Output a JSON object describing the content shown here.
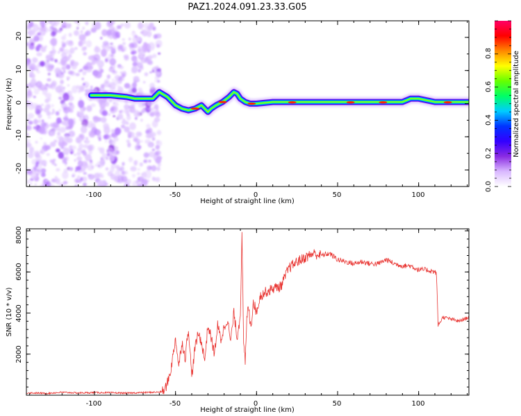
{
  "title": "PAZ1.2024.091.23.33.G05",
  "chart_data": [
    {
      "type": "heatmap",
      "xlabel": "Height of straight line (km)",
      "ylabel": "Frequency (Hz)",
      "xlim": [
        -142,
        131
      ],
      "ylim": [
        -25,
        25
      ],
      "x_ticks": [
        "-100",
        "-50",
        "0",
        "50",
        "100"
      ],
      "y_ticks": [
        "-20",
        "-10",
        "0",
        "10",
        "20"
      ],
      "colorbar": {
        "label": "Normalized spectral amplitude",
        "range": [
          0,
          1
        ],
        "ticks": [
          "0.0",
          "0.2",
          "0.4",
          "0.6",
          "0.8"
        ],
        "colormap": [
          "#ffffff",
          "#d9b8ff",
          "#8a2be2",
          "#3300ff",
          "#0033ff",
          "#00ccff",
          "#00ff66",
          "#66ff00",
          "#ffff00",
          "#ff8800",
          "#ff0000",
          "#ff0066"
        ]
      },
      "ridge": {
        "x": [
          -102,
          -90,
          -80,
          -75,
          -70,
          -64,
          -60,
          -55,
          -50,
          -46,
          -42,
          -38,
          -34,
          -30,
          -28,
          -25,
          -21,
          -17,
          -14,
          -12,
          -10,
          -7,
          -4,
          0,
          10,
          30,
          50,
          70,
          90,
          95,
          100,
          110,
          131
        ],
        "y": [
          2.5,
          2.5,
          2,
          1.5,
          1.5,
          1.5,
          3.5,
          2,
          -0.5,
          -1.5,
          -2,
          -1.5,
          -0.5,
          -2.5,
          -1.5,
          -0.5,
          0.5,
          2,
          3.5,
          3,
          1.5,
          0.5,
          0,
          0,
          0.5,
          0.5,
          0.5,
          0.5,
          0.5,
          1.5,
          1.5,
          0.5,
          0.5
        ]
      }
    },
    {
      "type": "line",
      "xlabel": "Height of straight line (km)",
      "ylabel": "SNR (10 * v/v)",
      "xlim": [
        -142,
        131
      ],
      "ylim": [
        0,
        8100
      ],
      "x_ticks": [
        "-100",
        "-50",
        "0",
        "50",
        "100"
      ],
      "y_ticks": [
        "2000",
        "4000",
        "6000",
        "8000"
      ],
      "color": "#e8312e",
      "series": [
        {
          "x": [
            -142,
            -130,
            -120,
            -110,
            -100,
            -90,
            -80,
            -70,
            -60,
            -57,
            -55,
            -53,
            -51,
            -50,
            -48,
            -46,
            -44,
            -42,
            -40,
            -38,
            -36,
            -34,
            -32,
            -30,
            -28,
            -26,
            -24,
            -22,
            -20,
            -18,
            -16,
            -14,
            -12,
            -10,
            -9,
            -8,
            -7,
            -6,
            -5,
            -4,
            -3,
            -2,
            0,
            2,
            5,
            8,
            10,
            15,
            20,
            25,
            30,
            35,
            40,
            45,
            50,
            55,
            60,
            65,
            70,
            75,
            80,
            85,
            90,
            95,
            100,
            105,
            110,
            111,
            112,
            115,
            120,
            125,
            131
          ],
          "y": [
            120,
            90,
            140,
            110,
            130,
            120,
            100,
            130,
            150,
            200,
            600,
            1200,
            2200,
            2800,
            1400,
            2600,
            1800,
            3300,
            900,
            2300,
            3000,
            2600,
            1700,
            3400,
            2800,
            2000,
            3400,
            2700,
            3300,
            3700,
            2600,
            4000,
            2800,
            3900,
            8100,
            2400,
            1600,
            3700,
            4400,
            3500,
            3600,
            4600,
            4000,
            4800,
            5000,
            5100,
            5200,
            5300,
            6200,
            6500,
            6700,
            6900,
            6800,
            6900,
            6600,
            6500,
            6400,
            6500,
            6400,
            6400,
            6600,
            6400,
            6300,
            6300,
            6100,
            6100,
            6000,
            5900,
            3400,
            3800,
            3700,
            3600,
            3800
          ]
        }
      ]
    }
  ]
}
